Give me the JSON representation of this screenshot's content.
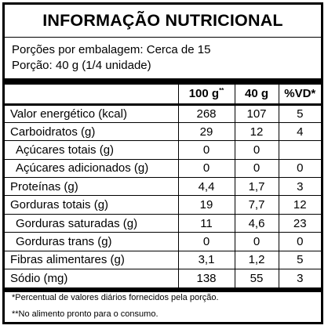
{
  "title": "INFORMAÇÃO NUTRICIONAL",
  "servings_per_package": "Porções por embalagem: Cerca de 15",
  "serving_size": "Porção: 40 g (1/4 unidade)",
  "headers": {
    "col_100g": "100 g",
    "col_100g_mark": "**",
    "col_serving": "40 g",
    "col_vd": "%VD*"
  },
  "rows": [
    {
      "name": "Valor energético (kcal)",
      "v100": "268",
      "vserv": "107",
      "vd": "5",
      "indent": false
    },
    {
      "name": "Carboidratos (g)",
      "v100": "29",
      "vserv": "12",
      "vd": "4",
      "indent": false
    },
    {
      "name": "Açúcares totais (g)",
      "v100": "0",
      "vserv": "0",
      "vd": "",
      "indent": true
    },
    {
      "name": "Açúcares adicionados (g)",
      "v100": "0",
      "vserv": "0",
      "vd": "0",
      "indent": true
    },
    {
      "name": "Proteínas (g)",
      "v100": "4,4",
      "vserv": "1,7",
      "vd": "3",
      "indent": false
    },
    {
      "name": "Gorduras totais (g)",
      "v100": "19",
      "vserv": "7,7",
      "vd": "12",
      "indent": false
    },
    {
      "name": "Gorduras saturadas (g)",
      "v100": "11",
      "vserv": "4,6",
      "vd": "23",
      "indent": true
    },
    {
      "name": "Gorduras trans (g)",
      "v100": "0",
      "vserv": "0",
      "vd": "0",
      "indent": true
    },
    {
      "name": "Fibras alimentares (g)",
      "v100": "3,1",
      "vserv": "1,2",
      "vd": "5",
      "indent": false
    },
    {
      "name": "Sódio (mg)",
      "v100": "138",
      "vserv": "55",
      "vd": "3",
      "indent": false
    }
  ],
  "footnotes": {
    "vd_note": "*Percentual de valores diários fornecidos pela porção.",
    "food_note": "**No alimento pronto para o consumo."
  }
}
